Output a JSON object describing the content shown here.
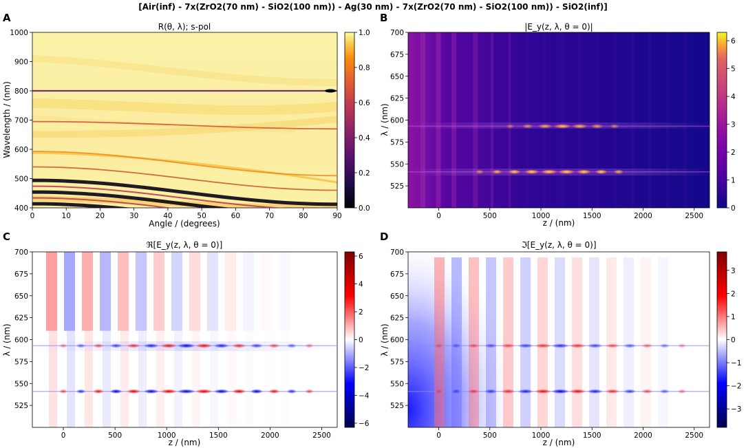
{
  "figure_title": "[Air(inf) - 7x(ZrO2(70 nm) - SiO2(100 nm)) - Ag(30 nm) - 7x(ZrO2(70 nm) - SiO2(100 nm)) - SiO2(inf)]",
  "chart_data": [
    {
      "panel": "A",
      "type": "heatmap",
      "title": "R(θ, λ); s-pol",
      "xlabel": "Angle / (degrees)",
      "ylabel": "Wavelength / (nm)",
      "xlim": [
        0,
        90
      ],
      "ylim": [
        400,
        1000
      ],
      "xticks": [
        0,
        10,
        20,
        30,
        40,
        50,
        60,
        70,
        80,
        90
      ],
      "yticks": [
        400,
        500,
        600,
        700,
        800,
        900,
        1000
      ],
      "colormap": "inferno",
      "colorbar": {
        "ticks": [
          "0.0",
          "0.2",
          "0.4",
          "0.6",
          "0.8",
          "1.0"
        ],
        "range": [
          0.0,
          1.0
        ]
      },
      "features": [
        {
          "kind": "reflectance dip",
          "wavelength_at_0deg": 800,
          "wavelength_at_90deg": 800,
          "min_value": 0.05
        },
        {
          "kind": "reflectance dip",
          "wavelength_at_0deg": 695,
          "wavelength_at_90deg": 670,
          "min_value": 0.3
        },
        {
          "kind": "reflectance dip",
          "wavelength_at_0deg": 593,
          "wavelength_at_90deg": 510,
          "min_value": 0.5
        },
        {
          "kind": "reflectance dip",
          "wavelength_at_0deg": 540,
          "wavelength_at_90deg": 460,
          "min_value": 0.3
        },
        {
          "kind": "low-reflectance band",
          "wavelength_range_at_0deg": [
            400,
            500
          ],
          "min_value": 0.0
        }
      ]
    },
    {
      "panel": "B",
      "type": "heatmap",
      "title": "|E_y(z, λ, θ = 0)|",
      "xlabel": "z / (nm)",
      "ylabel": "λ / (nm)",
      "xlim": [
        -300,
        2650
      ],
      "ylim": [
        500,
        700
      ],
      "xticks": [
        0,
        500,
        1000,
        1500,
        2000,
        2500
      ],
      "yticks": [
        525,
        550,
        575,
        600,
        625,
        650,
        675,
        700
      ],
      "colormap": "plasma",
      "colorbar": {
        "ticks": [
          "0",
          "1",
          "2",
          "3",
          "4",
          "5",
          "6"
        ],
        "range": [
          0,
          6.3
        ]
      },
      "features": [
        {
          "kind": "resonance",
          "wavelength": 541,
          "peak_value": 6.2,
          "z_range": [
            400,
            1900
          ]
        },
        {
          "kind": "resonance",
          "wavelength": 593,
          "peak_value": 3.5,
          "z_range": [
            700,
            1800
          ]
        }
      ]
    },
    {
      "panel": "C",
      "type": "heatmap",
      "title": "ℜ[E_y(z, λ, θ = 0)]",
      "xlabel": "z / (nm)",
      "ylabel": "λ / (nm)",
      "xlim": [
        -300,
        2650
      ],
      "ylim": [
        500,
        700
      ],
      "xticks": [
        0,
        500,
        1000,
        1500,
        2000,
        2500
      ],
      "yticks": [
        525,
        550,
        575,
        600,
        625,
        650,
        675,
        700
      ],
      "colormap": "seismic",
      "colorbar": {
        "ticks": [
          "−6",
          "−4",
          "−2",
          "0",
          "2",
          "4",
          "6"
        ],
        "range": [
          -6.3,
          6.3
        ]
      },
      "features": [
        {
          "kind": "resonance",
          "wavelength": 541,
          "peak_value": 6.2
        },
        {
          "kind": "resonance",
          "wavelength": 593,
          "peak_value": 3.5
        }
      ]
    },
    {
      "panel": "D",
      "type": "heatmap",
      "title": "ℑ[E_y(z, λ, θ = 0)]",
      "xlabel": "z / (nm)",
      "ylabel": "λ / (nm)",
      "xlim": [
        -300,
        2650
      ],
      "ylim": [
        500,
        700
      ],
      "xticks": [
        0,
        500,
        1000,
        1500,
        2000,
        2500
      ],
      "yticks": [
        525,
        550,
        575,
        600,
        625,
        650,
        675,
        700
      ],
      "colormap": "seismic",
      "colorbar": {
        "ticks": [
          "−3",
          "−2",
          "−1",
          "0",
          "1",
          "2",
          "3"
        ],
        "range": [
          -3.8,
          3.8
        ]
      },
      "features": [
        {
          "kind": "resonance",
          "wavelength": 541,
          "peak_value": 3.6
        },
        {
          "kind": "resonance",
          "wavelength": 593,
          "peak_value": 2.5
        }
      ]
    }
  ]
}
